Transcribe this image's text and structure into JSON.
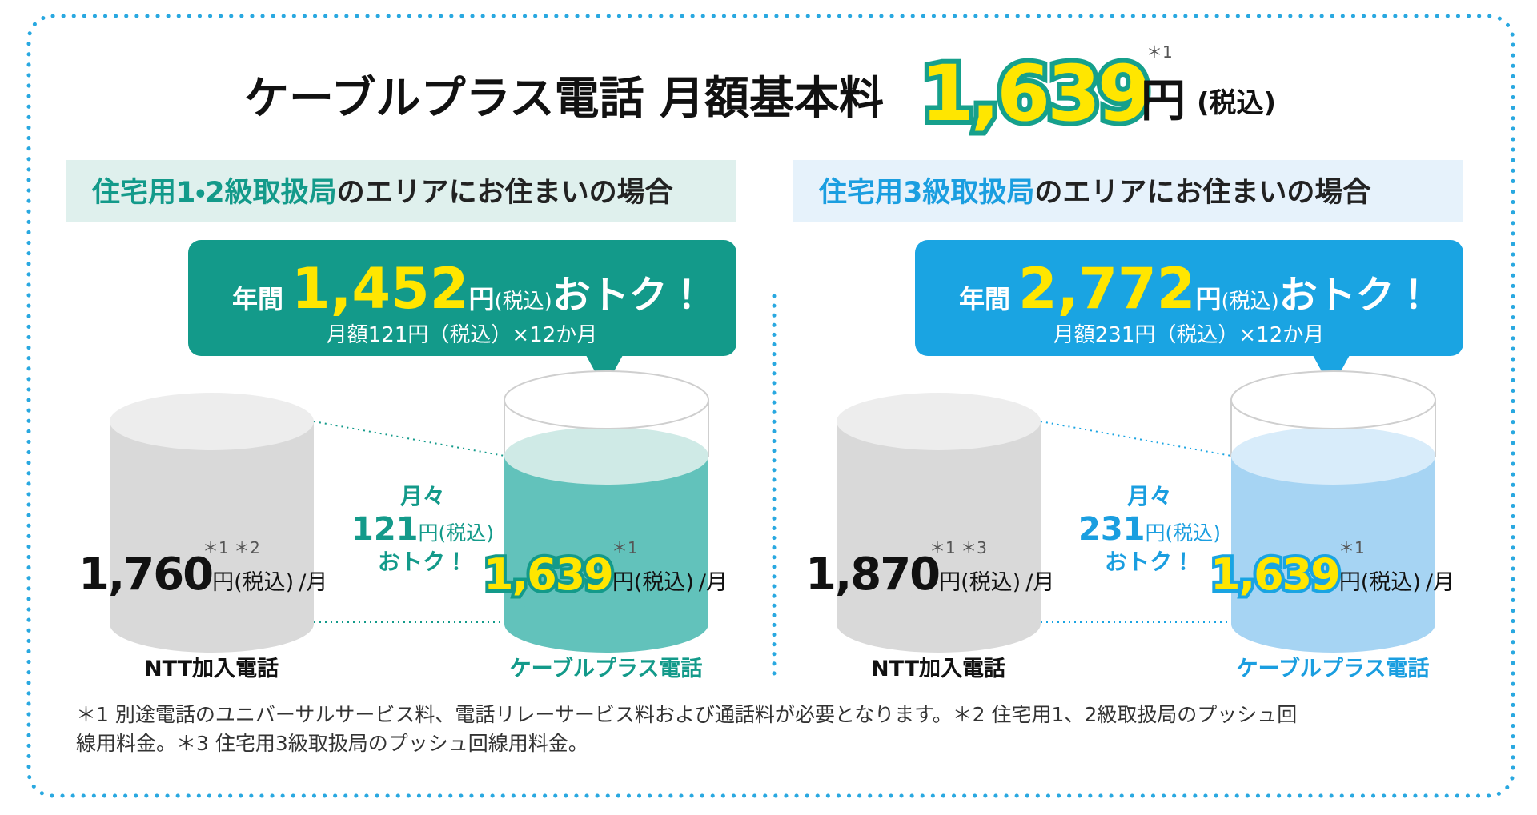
{
  "header": {
    "title": "ケーブルプラス電話 月額基本料",
    "price": "1,639",
    "unit": "円",
    "note": "＊1",
    "tax": "(税込)"
  },
  "panels": [
    {
      "area_highlight": "住宅用1・2級取扱局",
      "area_rest": "のエリアにお住まいの場合",
      "savings": {
        "prefix": "年間",
        "amount": "1,452",
        "unit": "円",
        "tax": "(税込)",
        "suffix": "おトク！",
        "detail": "月額121円（税込）×12か月"
      },
      "monthly": {
        "line1": "月々",
        "amount": "121",
        "unit": "円(税込)",
        "line3": "おトク！"
      },
      "ntt": {
        "price": "1,760",
        "unit": "円(税込)",
        "per": "/月",
        "notes": "＊1 ＊2",
        "label": "NTT加入電話"
      },
      "cable": {
        "price": "1,639",
        "unit": "円(税込)",
        "per": "/月",
        "notes": "＊1",
        "label": "ケーブルプラス電話"
      }
    },
    {
      "area_highlight": "住宅用3級取扱局",
      "area_rest": "のエリアにお住まいの場合",
      "savings": {
        "prefix": "年間",
        "amount": "2,772",
        "unit": "円",
        "tax": "(税込)",
        "suffix": "おトク！",
        "detail": "月額231円（税込）×12か月"
      },
      "monthly": {
        "line1": "月々",
        "amount": "231",
        "unit": "円(税込)",
        "line3": "おトク！"
      },
      "ntt": {
        "price": "1,870",
        "unit": "円(税込)",
        "per": "/月",
        "notes": "＊1 ＊3",
        "label": "NTT加入電話"
      },
      "cable": {
        "price": "1,639",
        "unit": "円(税込)",
        "per": "/月",
        "notes": "＊1",
        "label": "ケーブルプラス電話"
      }
    }
  ],
  "footnote": {
    "line1": "＊1 別途電話のユニバーサルサービス料、電話リレーサービス料および通話料が必要となります。＊2 住宅用1、2級取扱局のプッシュ回",
    "line2": "線用料金。＊3 住宅用3級取扱局のプッシュ回線用料金。"
  }
}
